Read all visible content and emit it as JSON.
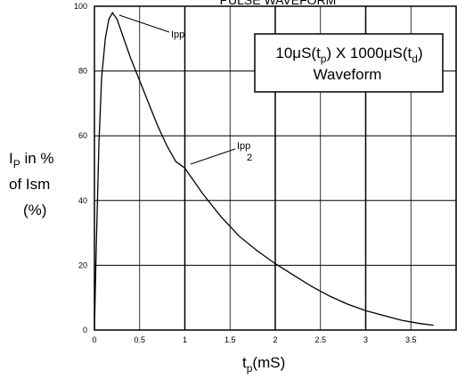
{
  "chart_data": {
    "type": "line",
    "title": "PULSE WAVEFORM",
    "ylabel_lines": [
      "I",
      "P",
      " in %",
      "of Ism",
      "(%)"
    ],
    "xlabel_main": "t",
    "xlabel_sub": "p",
    "xlabel_unit": "(mS)",
    "xlim": [
      0,
      4
    ],
    "ylim": [
      0,
      100
    ],
    "x_ticks": [
      {
        "value": 0,
        "label": "0"
      },
      {
        "value": 0.5,
        "label": "0.5"
      },
      {
        "value": 1,
        "label": "1"
      },
      {
        "value": 1.5,
        "label": "1.5"
      },
      {
        "value": 2,
        "label": "2"
      },
      {
        "value": 2.5,
        "label": "2.5"
      },
      {
        "value": 3,
        "label": "3"
      },
      {
        "value": 3.5,
        "label": "3.5"
      }
    ],
    "y_ticks": [
      {
        "value": 0,
        "label": "0"
      },
      {
        "value": 20,
        "label": "20"
      },
      {
        "value": 40,
        "label": "40"
      },
      {
        "value": 60,
        "label": "60"
      },
      {
        "value": 80,
        "label": "80"
      },
      {
        "value": 100,
        "label": "100"
      }
    ],
    "grid": true,
    "series": [
      {
        "x": [
          0,
          0.02,
          0.05,
          0.08,
          0.12,
          0.16,
          0.2,
          0.25,
          0.3,
          0.4,
          0.5,
          0.6,
          0.7,
          0.8,
          0.9,
          1.0,
          1.2,
          1.4,
          1.6,
          1.8,
          2.0,
          2.2,
          2.4,
          2.6,
          2.8,
          3.0,
          3.2,
          3.4,
          3.6,
          3.75
        ],
        "y": [
          0,
          25,
          58,
          78,
          90,
          96,
          98,
          96,
          92,
          84,
          77,
          70,
          63,
          57,
          52,
          50,
          42,
          35,
          29,
          24.5,
          20.5,
          17,
          13.5,
          10.5,
          8,
          6,
          4.5,
          3,
          2,
          1.5
        ]
      }
    ],
    "legend_box": {
      "line1_a": "10μS(t",
      "line1_sub1": "p",
      "line1_b": ") X 1000μS(t",
      "line1_sub2": "d",
      "line1_c": ")",
      "line2": "Waveform"
    },
    "annotations": [
      {
        "text": "Ipp"
      },
      {
        "text_line1": "Ipp",
        "text_line2": "2"
      }
    ]
  }
}
